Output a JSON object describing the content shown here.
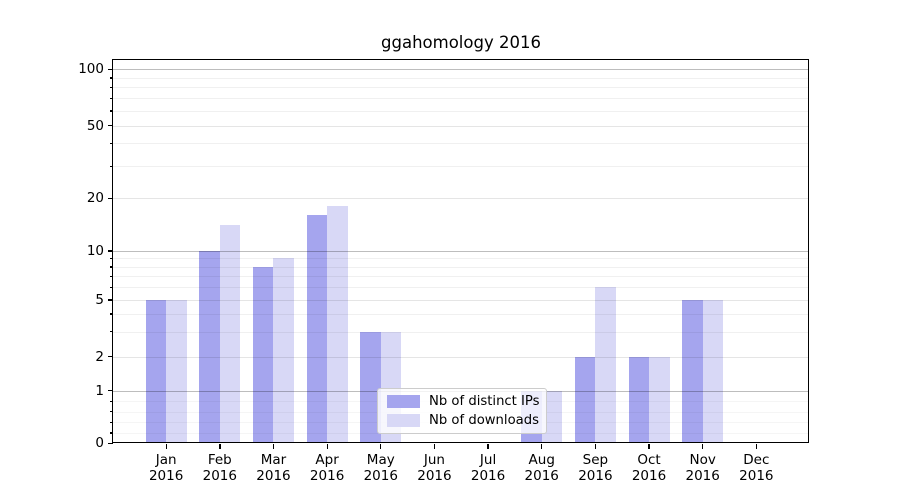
{
  "title": "ggahomology 2016",
  "colors": {
    "distinct_ips_bar": "#a5a5ee",
    "downloads_bar": "#d8d8f6",
    "grid_major": "rgba(0,0,0,0.26)",
    "grid_labeled_minor": "rgba(0,0,0,0.10)",
    "grid_minor": "rgba(0,0,0,0.06)",
    "grid_sublinear": "rgba(0,0,0,0.04)",
    "legend_border": "#cccccc",
    "axis": "#000000"
  },
  "legend": {
    "items": [
      {
        "label": "Nb of distinct IPs"
      },
      {
        "label": "Nb of downloads"
      }
    ]
  },
  "chart_data": {
    "type": "bar",
    "title": "ggahomology 2016",
    "categories": [
      "Jan 2016",
      "Feb 2016",
      "Mar 2016",
      "Apr 2016",
      "May 2016",
      "Jun 2016",
      "Jul 2016",
      "Aug 2016",
      "Sep 2016",
      "Oct 2016",
      "Nov 2016",
      "Dec 2016"
    ],
    "series": [
      {
        "name": "Nb of distinct IPs",
        "color": "#a5a5ee",
        "values": [
          5,
          10,
          8,
          16,
          3,
          0,
          0,
          1,
          2,
          2,
          5,
          0
        ]
      },
      {
        "name": "Nb of downloads",
        "color": "#d8d8f6",
        "values": [
          5,
          14,
          9,
          18,
          3,
          0,
          0,
          1,
          6,
          2,
          5,
          0
        ]
      }
    ],
    "yscale": "symlog",
    "ylim": [
      0,
      100
    ],
    "y_ticks": [
      0,
      1,
      2,
      5,
      10,
      20,
      50,
      100
    ],
    "y_decade_ticks": [
      1,
      10,
      100
    ],
    "y_labeled_minor_ticks": [
      2,
      5,
      20,
      50
    ],
    "y_minor_ticks": [
      3,
      4,
      6,
      7,
      8,
      9,
      30,
      40,
      60,
      70,
      80,
      90
    ],
    "y_sublinear_minor_ticks": [
      0.2,
      0.4,
      0.6,
      0.8
    ],
    "grid": "both",
    "legend_position": "lower center",
    "xlabel": "",
    "ylabel": ""
  }
}
